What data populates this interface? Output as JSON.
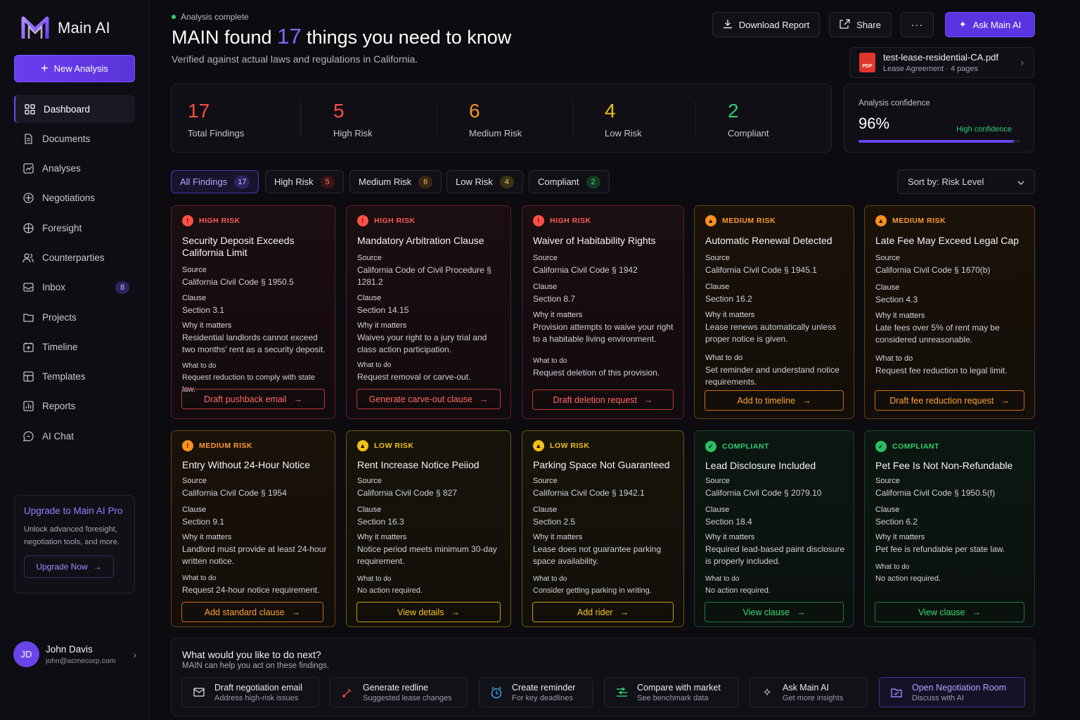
{
  "app": {
    "name": "Main AI"
  },
  "sidebar": {
    "new_analysis": "New Analysis",
    "items": [
      {
        "label": "Dashboard",
        "icon": "grid-icon",
        "active": true
      },
      {
        "label": "Documents",
        "icon": "document-icon"
      },
      {
        "label": "Analyses",
        "icon": "chart-icon"
      },
      {
        "label": "Negotiations",
        "icon": "handshake-icon"
      },
      {
        "label": "Foresight",
        "icon": "compass-icon"
      },
      {
        "label": "Counterparties",
        "icon": "users-icon"
      },
      {
        "label": "Inbox",
        "icon": "inbox-icon",
        "badge": "8"
      },
      {
        "label": "Projects",
        "icon": "folder-icon"
      },
      {
        "label": "Timeline",
        "icon": "calendar-icon"
      },
      {
        "label": "Templates",
        "icon": "template-icon"
      },
      {
        "label": "Reports",
        "icon": "report-icon"
      },
      {
        "label": "AI Chat",
        "icon": "chat-icon"
      }
    ],
    "upgrade": {
      "title": "Upgrade to Main AI Pro",
      "text": "Unlock advanced foresight, negotiation tools, and more.",
      "button": "Upgrade Now"
    },
    "user": {
      "initials": "JD",
      "name": "John Davis",
      "email": "john@acmecorp.com"
    }
  },
  "header": {
    "status": "Analysis complete",
    "title_pre": "MAIN found",
    "title_num": "17",
    "title_post": "things you need to know",
    "subtitle": "Verified against actual laws and regulations in California.",
    "download": "Download Report",
    "share": "Share",
    "more": "···",
    "ask": "Ask Main AI",
    "file": {
      "name": "test-lease-residential-CA.pdf",
      "meta": "Lease Agreement · 4 pages",
      "icon_text": "PDF"
    }
  },
  "stats": [
    {
      "value": "17",
      "label": "Total Findings",
      "color": "#ff4d45"
    },
    {
      "value": "5",
      "label": "High Risk",
      "color": "#ff4d45"
    },
    {
      "value": "6",
      "label": "Medium Risk",
      "color": "#ff8f1f"
    },
    {
      "value": "4",
      "label": "Low Risk",
      "color": "#f2c018"
    },
    {
      "value": "2",
      "label": "Compliant",
      "color": "#2ecc71"
    }
  ],
  "confidence": {
    "title": "Analysis confidence",
    "value": "96%",
    "level": "High confidence",
    "fraction": 0.96
  },
  "filters": [
    {
      "label": "All Findings",
      "count": "17"
    },
    {
      "label": "High Risk",
      "count": "5"
    },
    {
      "label": "Medium Risk",
      "count": "6"
    },
    {
      "label": "Low Risk",
      "count": "4"
    },
    {
      "label": "Compliant",
      "count": "2"
    }
  ],
  "sort": "Sort by: Risk Level",
  "field_labels": {
    "source": "Source",
    "clause": "Clause",
    "why": "Why it matters",
    "todo": "What to do"
  },
  "cards": [
    {
      "level": "HIGH RISK",
      "title": "Security Deposit Exceeds California Limit",
      "source": "California Civil Code § 1950.5",
      "clause": "Section 3.1",
      "why": "Residential landlords cannot exceed two months' rent as a security deposit.",
      "todo": "Request reduction to comply with state law.",
      "action": "Draft pushback email"
    },
    {
      "level": "HIGH RISK",
      "title": "Mandatory Arbitration Clause",
      "source": "California Code of Civil Procedure § 1281.2",
      "clause": "Section 14.15",
      "why": "Waives your right to a jury trial and class action participation.",
      "todo": "Request removal or carve-out.",
      "action": "Generate carve-out clause"
    },
    {
      "level": "HIGH RISK",
      "title": "Waiver of Habitability Rights",
      "source": "California Civil Code § 1942",
      "clause": "Section 8.7",
      "why": "Provision attempts to waive your right to a habitable living environment.",
      "todo": "Request deletion of this provision.",
      "action": "Draft deletion request"
    },
    {
      "level": "MEDIUM RISK",
      "title": "Automatic Renewal Detected",
      "source": "California Civil Code § 1945.1",
      "clause": "Section 16.2",
      "why": "Lease renews automatically unless proper notice is given.",
      "todo": "Set reminder and understand notice requirements.",
      "action": "Add to timeline"
    },
    {
      "level": "MEDIUM RISK",
      "title": "Late Fee May Exceed Legal Cap",
      "source": "California Civil Code § 1670(b)",
      "clause": "Section 4.3",
      "why": "Late fees over 5% of rent may be considered unreasonable.",
      "todo": "Request fee reduction to legal limit.",
      "action": "Draft fee reduction request"
    },
    {
      "level": "MEDIUM RISK",
      "title": "Entry Without 24-Hour Notice",
      "source": "California Civil Code § 1954",
      "clause": "Section 9.1",
      "why": "Landlord must provide at least 24-hour written notice.",
      "todo": "Request 24-hour notice requirement.",
      "action": "Add standard clause"
    },
    {
      "level": "LOW RISK",
      "title": "Rent Increase Notice Peiiod",
      "source": "California Civil Code § 827",
      "clause": "Section 16.3",
      "why": "Notice period meets minimum 30-day requirement.",
      "todo": "No action required.",
      "action": "View details"
    },
    {
      "level": "LOW RISK",
      "title": "Parking Space Not Guaranteed",
      "source": "California Civil Code § 1942.1",
      "clause": "Section 2.5",
      "why": "Lease does not guarantee parking space availability.",
      "todo": "Consider getting parking in writing.",
      "action": "Add rider"
    },
    {
      "level": "COMPLIANT",
      "title": "Lead Disclosure Included",
      "source": "California Civil Code § 2079.10",
      "clause": "Section 18.4",
      "why": "Required lead-based paint disclosure is properly included.",
      "todo": "No action required.",
      "action": "View clause"
    },
    {
      "level": "COMPLIANT",
      "title": "Pet Fee Is Not Non-Refundable",
      "source": "California Civil Code § 1950.5(f)",
      "clause": "Section 6.2",
      "why": "Pet fee is refundable per state law.",
      "todo": "No action required.",
      "action": "View clause"
    }
  ],
  "next": {
    "title": "What would you like to do next?",
    "subtitle": "MAIN can help you act on these findings.",
    "actions": [
      {
        "label": "Draft negotiation email",
        "sub": "Address high-risk issues",
        "icon": "mail-icon"
      },
      {
        "label": "Generate redline",
        "sub": "Suggested lease changes",
        "icon": "redline-icon"
      },
      {
        "label": "Create reminder",
        "sub": "For key deadlines",
        "icon": "alarm-icon"
      },
      {
        "label": "Compare with market",
        "sub": "See benchmark data",
        "icon": "compare-icon"
      },
      {
        "label": "Ask Main AI",
        "sub": "Get more insights",
        "icon": "sparkle-icon"
      },
      {
        "label": "Open Negotiation Room",
        "sub": "Discuss with AI",
        "icon": "room-icon"
      }
    ]
  }
}
